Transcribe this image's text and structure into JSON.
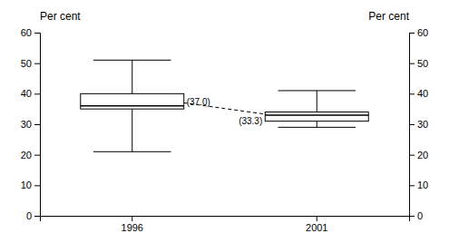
{
  "chart_data": {
    "type": "box",
    "categories": [
      "1996",
      "2001"
    ],
    "boxes": [
      {
        "whisker_low": 21,
        "q1": 35,
        "median": 36,
        "q3": 40,
        "whisker_high": 51
      },
      {
        "whisker_low": 29,
        "q1": 31,
        "median": 33,
        "q3": 34,
        "whisker_high": 41
      }
    ],
    "means": {
      "values": [
        37.0,
        33.3
      ],
      "value_labels": [
        "(37.0)",
        "(33.3)"
      ],
      "line_style": "dashed"
    },
    "ylabel": "Per cent",
    "y2label": "Per cent",
    "ylim": [
      0,
      60
    ],
    "yticks": [
      0,
      10,
      20,
      30,
      40,
      50,
      60
    ],
    "y2lim": [
      0,
      60
    ],
    "y2ticks": [
      0,
      10,
      20,
      30,
      40,
      50,
      60
    ],
    "grid": false
  }
}
